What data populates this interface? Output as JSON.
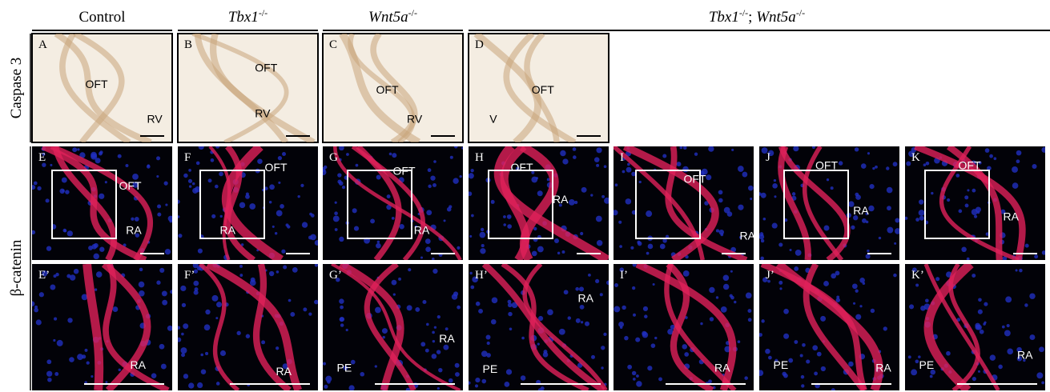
{
  "figure": {
    "column_headers": [
      {
        "parts": [
          {
            "text": "Control",
            "italic": false
          }
        ]
      },
      {
        "parts": [
          {
            "text": "Tbx1",
            "italic": true
          },
          {
            "text": "-/-",
            "sup": true
          }
        ]
      },
      {
        "parts": [
          {
            "text": "Wnt5a",
            "italic": true
          },
          {
            "text": "-/-",
            "sup": true
          }
        ]
      },
      {
        "parts": [
          {
            "text": "Tbx1",
            "italic": true
          },
          {
            "text": "-/-",
            "sup": true
          },
          {
            "text": "; ",
            "italic": false
          },
          {
            "text": "Wnt5a",
            "italic": true
          },
          {
            "text": "-/-",
            "sup": true
          }
        ]
      }
    ],
    "row_labels": [
      "Caspase 3",
      "β-catenin"
    ],
    "rows": [
      [
        {
          "letter": "A",
          "labels": [
            "OFT",
            "RV"
          ]
        },
        {
          "letter": "B",
          "labels": [
            "OFT",
            "RV"
          ]
        },
        {
          "letter": "C",
          "labels": [
            "OFT",
            "RV"
          ]
        },
        {
          "letter": "D",
          "labels": [
            "OFT",
            "V"
          ]
        }
      ],
      [
        {
          "letter": "E",
          "labels": [
            "OFT",
            "RA"
          ]
        },
        {
          "letter": "F",
          "labels": [
            "OFT",
            "RA"
          ]
        },
        {
          "letter": "G",
          "labels": [
            "OFT",
            "RA"
          ]
        },
        {
          "letter": "H",
          "labels": [
            "OFT",
            "RA"
          ]
        },
        {
          "letter": "I",
          "labels": [
            "OFT",
            "RA"
          ]
        },
        {
          "letter": "J",
          "labels": [
            "OFT",
            "RA"
          ]
        },
        {
          "letter": "K",
          "labels": [
            "OFT",
            "RA"
          ]
        }
      ],
      [
        {
          "letter": "E’",
          "labels": [
            "RA"
          ]
        },
        {
          "letter": "F’",
          "labels": [
            "RA"
          ]
        },
        {
          "letter": "G’",
          "labels": [
            "PE",
            "RA"
          ]
        },
        {
          "letter": "H’",
          "labels": [
            "RA",
            "PE"
          ]
        },
        {
          "letter": "I’",
          "labels": [
            "RA"
          ]
        },
        {
          "letter": "J’",
          "labels": [
            "PE",
            "RA"
          ]
        },
        {
          "letter": "K’",
          "labels": [
            "PE",
            "RA"
          ]
        }
      ]
    ]
  }
}
